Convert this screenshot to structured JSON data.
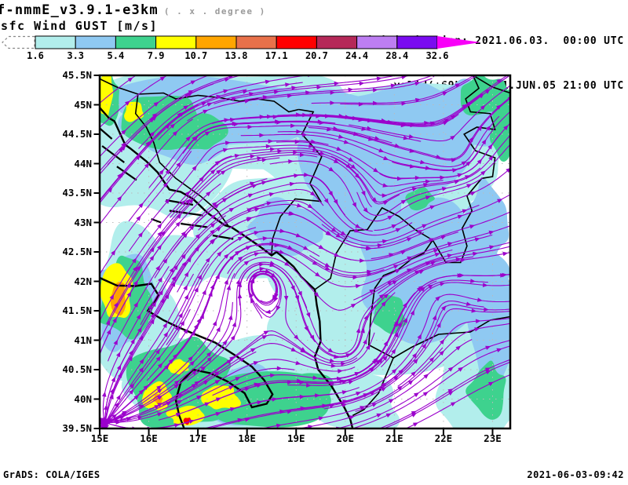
{
  "header": {
    "model_title": "f-nmmE_v3.9.1-e3km",
    "model_resolution": "( . x . degree )",
    "field_title": "sfc Wind GUST [m/s]",
    "initialisation": "initialisation: 2021.06.03.  00:00 UTC",
    "valid": "valid(+69h): 2021.JUN.05 21:00 UTC"
  },
  "colorbar": {
    "unit": "m/s",
    "levels": [
      "1.6",
      "3.3",
      "5.4",
      "7.9",
      "10.7",
      "13.8",
      "17.1",
      "20.7",
      "24.4",
      "28.4",
      "32.6"
    ],
    "segment_colors": [
      "#b2eeec",
      "#8fc9f2",
      "#3ed28e",
      "#ffff00",
      "#ffa500",
      "#e8714a",
      "#ff0000",
      "#b52858",
      "#bd7ef2",
      "#7a0cf0"
    ],
    "under_color": "#ffffff",
    "over_color": "#f800f8"
  },
  "map": {
    "plot_type": "streamlines over shaded wind-gust field",
    "lat_tick_labels": [
      "45.5N",
      "45N",
      "44.5N",
      "44N",
      "43.5N",
      "43N",
      "42.5N",
      "42N",
      "41.5N",
      "41N",
      "40.5N",
      "40N",
      "39.5N"
    ],
    "lon_tick_labels": [
      "15E",
      "16E",
      "17E",
      "18E",
      "19E",
      "20E",
      "21E",
      "22E",
      "23E"
    ],
    "lat_range": [
      39.5,
      45.5
    ],
    "lon_range": [
      15.0,
      23.36
    ],
    "streamline_color": "#9b00cc",
    "coast_color": "#000000",
    "grid_color": "#bbbbbb",
    "shade_blobs": [
      [
        17.5,
        44.8,
        2.9,
        0.85,
        0
      ],
      [
        20.9,
        44.2,
        2.7,
        1.4,
        0
      ],
      [
        21.2,
        42.2,
        2.4,
        1.7,
        0
      ],
      [
        18.6,
        43.0,
        1.6,
        1.0,
        0
      ],
      [
        17.8,
        40.2,
        2.1,
        0.95,
        0
      ],
      [
        22.7,
        40.5,
        0.9,
        1.1,
        0
      ],
      [
        15.6,
        41.6,
        1.0,
        1.2,
        0
      ],
      [
        16.2,
        44.1,
        1.5,
        0.9,
        0
      ],
      [
        19.6,
        41.2,
        1.0,
        0.9,
        0
      ],
      [
        16.8,
        42.4,
        0.8,
        0.5,
        0
      ],
      [
        20.2,
        39.9,
        0.9,
        0.5,
        0
      ],
      [
        17.4,
        44.85,
        2.3,
        0.6,
        1
      ],
      [
        20.9,
        44.35,
        2.0,
        0.95,
        1
      ],
      [
        21.7,
        42.2,
        1.5,
        1.1,
        1
      ],
      [
        16.6,
        44.55,
        1.1,
        0.5,
        1
      ],
      [
        20.3,
        43.3,
        0.95,
        0.6,
        1
      ],
      [
        22.95,
        41.3,
        0.55,
        0.95,
        1
      ],
      [
        17.9,
        40.1,
        1.3,
        0.5,
        1
      ],
      [
        15.45,
        41.7,
        0.6,
        0.85,
        1
      ],
      [
        18.85,
        42.9,
        0.8,
        0.5,
        1
      ],
      [
        22.6,
        44.9,
        0.85,
        0.6,
        1
      ],
      [
        19.9,
        44.7,
        0.9,
        0.5,
        1
      ],
      [
        22.9,
        43.0,
        0.5,
        0.7,
        1
      ],
      [
        16.3,
        44.75,
        0.8,
        0.45,
        2
      ],
      [
        15.15,
        45.1,
        0.28,
        0.45,
        2
      ],
      [
        22.85,
        45.15,
        0.5,
        0.35,
        2
      ],
      [
        23.25,
        44.7,
        0.3,
        0.55,
        2
      ],
      [
        16.7,
        40.3,
        1.15,
        0.8,
        2
      ],
      [
        18.4,
        40.0,
        1.3,
        0.45,
        2
      ],
      [
        15.5,
        41.7,
        0.5,
        0.7,
        2
      ],
      [
        22.9,
        40.15,
        0.4,
        0.5,
        2
      ],
      [
        20.9,
        41.45,
        0.35,
        0.3,
        2
      ],
      [
        17.1,
        44.5,
        0.5,
        0.3,
        2
      ],
      [
        21.5,
        43.4,
        0.3,
        0.22,
        2
      ],
      [
        19.3,
        40.1,
        0.5,
        0.3,
        2
      ],
      [
        15.12,
        45.2,
        0.15,
        0.4,
        3
      ],
      [
        15.35,
        41.75,
        0.32,
        0.5,
        3
      ],
      [
        16.15,
        40.05,
        0.28,
        0.22,
        3
      ],
      [
        16.75,
        39.72,
        0.35,
        0.16,
        3
      ],
      [
        17.45,
        40.02,
        0.4,
        0.2,
        3
      ],
      [
        16.6,
        40.55,
        0.22,
        0.13,
        3
      ],
      [
        15.7,
        44.9,
        0.22,
        0.18,
        3
      ],
      [
        15.38,
        41.72,
        0.18,
        0.26,
        4
      ],
      [
        16.2,
        40.0,
        0.1,
        0.08,
        4
      ],
      [
        16.78,
        39.63,
        0.07,
        0.06,
        6
      ]
    ],
    "flow": {
      "background": [
        0.55,
        -0.3
      ],
      "vortices": [
        [
          0.39,
          0.57,
          2.2
        ],
        [
          0.67,
          0.4,
          -1.8
        ],
        [
          0.83,
          0.62,
          1.6
        ],
        [
          0.6,
          0.78,
          -1.5
        ],
        [
          0.27,
          0.18,
          1.0
        ],
        [
          0.88,
          0.25,
          -1.2
        ],
        [
          0.52,
          0.3,
          0.9
        ]
      ],
      "source": [
        0.03,
        0.97,
        2.0
      ]
    }
  },
  "footer": {
    "left": "GrADS: COLA/IGES",
    "right": "2021-06-03-09:42"
  }
}
